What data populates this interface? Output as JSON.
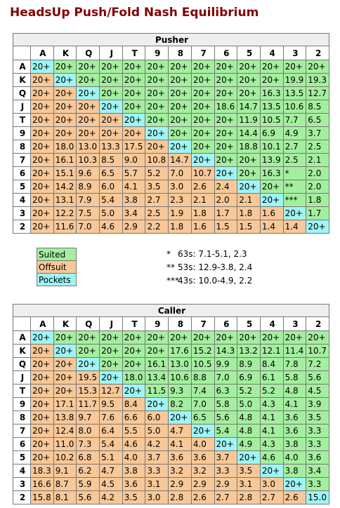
{
  "title": "HeadsUp Push/Fold Nash Equilibrium",
  "pusher": {
    "title": "Pusher",
    "columns": [
      "A",
      "K",
      "Q",
      "J",
      "T",
      "9",
      "8",
      "7",
      "6",
      "5",
      "4",
      "3",
      "2"
    ],
    "rows": [
      {
        "label": "A",
        "cells": [
          "20+",
          "20+",
          "20+",
          "20+",
          "20+",
          "20+",
          "20+",
          "20+",
          "20+",
          "20+",
          "20+",
          "20+",
          "20+"
        ]
      },
      {
        "label": "K",
        "cells": [
          "20+",
          "20+",
          "20+",
          "20+",
          "20+",
          "20+",
          "20+",
          "20+",
          "20+",
          "20+",
          "20+",
          "19.9",
          "19.3"
        ]
      },
      {
        "label": "Q",
        "cells": [
          "20+",
          "20+",
          "20+",
          "20+",
          "20+",
          "20+",
          "20+",
          "20+",
          "20+",
          "20+",
          "16.3",
          "13.5",
          "12.7"
        ]
      },
      {
        "label": "J",
        "cells": [
          "20+",
          "20+",
          "20+",
          "20+",
          "20+",
          "20+",
          "20+",
          "20+",
          "18.6",
          "14.7",
          "13.5",
          "10.6",
          "8.5"
        ]
      },
      {
        "label": "T",
        "cells": [
          "20+",
          "20+",
          "20+",
          "20+",
          "20+",
          "20+",
          "20+",
          "20+",
          "20+",
          "11.9",
          "10.5",
          "7.7",
          "6.5"
        ]
      },
      {
        "label": "9",
        "cells": [
          "20+",
          "20+",
          "20+",
          "20+",
          "20+",
          "20+",
          "20+",
          "20+",
          "20+",
          "14.4",
          "6.9",
          "4.9",
          "3.7"
        ]
      },
      {
        "label": "8",
        "cells": [
          "20+",
          "18.0",
          "13.0",
          "13.3",
          "17.5",
          "20+",
          "20+",
          "20+",
          "20+",
          "18.8",
          "10.1",
          "2.7",
          "2.5"
        ]
      },
      {
        "label": "7",
        "cells": [
          "20+",
          "16.1",
          "10.3",
          "8.5",
          "9.0",
          "10.8",
          "14.7",
          "20+",
          "20+",
          "20+",
          "13.9",
          "2.5",
          "2.1"
        ]
      },
      {
        "label": "6",
        "cells": [
          "20+",
          "15.1",
          "9.6",
          "6.5",
          "5.7",
          "5.2",
          "7.0",
          "10.7",
          "20+",
          "20+",
          "16.3",
          "*",
          "2.0"
        ]
      },
      {
        "label": "5",
        "cells": [
          "20+",
          "14.2",
          "8.9",
          "6.0",
          "4.1",
          "3.5",
          "3.0",
          "2.6",
          "2.4",
          "20+",
          "20+",
          "**",
          "2.0"
        ]
      },
      {
        "label": "4",
        "cells": [
          "20+",
          "13.1",
          "7.9",
          "5.4",
          "3.8",
          "2.7",
          "2.3",
          "2.1",
          "2.0",
          "2.1",
          "20+",
          "***",
          "1.8"
        ]
      },
      {
        "label": "3",
        "cells": [
          "20+",
          "12.2",
          "7.5",
          "5.0",
          "3.4",
          "2.5",
          "1.9",
          "1.8",
          "1.7",
          "1.8",
          "1.6",
          "20+",
          "1.7"
        ]
      },
      {
        "label": "2",
        "cells": [
          "20+",
          "11.6",
          "7.0",
          "4.6",
          "2.9",
          "2.2",
          "1.8",
          "1.6",
          "1.5",
          "1.5",
          "1.4",
          "1.4",
          "20+"
        ]
      }
    ]
  },
  "legend": [
    "Suited",
    "Offsuit",
    "Pockets"
  ],
  "notes": [
    {
      "mark": "*",
      "text": "63s: 7.1-5.1, 2.3"
    },
    {
      "mark": "**",
      "text": "53s: 12.9-3.8, 2.4"
    },
    {
      "mark": "***",
      "text": "43s: 10.0-4.9, 2.2"
    }
  ],
  "caller": {
    "title": "Caller",
    "columns": [
      "A",
      "K",
      "Q",
      "J",
      "T",
      "9",
      "8",
      "7",
      "6",
      "5",
      "4",
      "3",
      "2"
    ],
    "rows": [
      {
        "label": "A",
        "cells": [
          "20+",
          "20+",
          "20+",
          "20+",
          "20+",
          "20+",
          "20+",
          "20+",
          "20+",
          "20+",
          "20+",
          "20+",
          "20+"
        ]
      },
      {
        "label": "K",
        "cells": [
          "20+",
          "20+",
          "20+",
          "20+",
          "20+",
          "20+",
          "17.6",
          "15.2",
          "14.3",
          "13.2",
          "12.1",
          "11.4",
          "10.7"
        ]
      },
      {
        "label": "Q",
        "cells": [
          "20+",
          "20+",
          "20+",
          "20+",
          "20+",
          "16.1",
          "13.0",
          "10.5",
          "9.9",
          "8.9",
          "8.4",
          "7.8",
          "7.2"
        ]
      },
      {
        "label": "J",
        "cells": [
          "20+",
          "20+",
          "19.5",
          "20+",
          "18.0",
          "13.4",
          "10.6",
          "8.8",
          "7.0",
          "6.9",
          "6.1",
          "5.8",
          "5.6"
        ]
      },
      {
        "label": "T",
        "cells": [
          "20+",
          "20+",
          "15.3",
          "12.7",
          "20+",
          "11.5",
          "9.3",
          "7.4",
          "6.3",
          "5.2",
          "5.2",
          "4.8",
          "4.5"
        ]
      },
      {
        "label": "9",
        "cells": [
          "20+",
          "17.1",
          "11.7",
          "9.5",
          "8.4",
          "20+",
          "8.2",
          "7.0",
          "5.8",
          "5.0",
          "4.3",
          "4.1",
          "3.9"
        ]
      },
      {
        "label": "8",
        "cells": [
          "20+",
          "13.8",
          "9.7",
          "7.6",
          "6.6",
          "6.0",
          "20+",
          "6.5",
          "5.6",
          "4.8",
          "4.1",
          "3.6",
          "3.5"
        ]
      },
      {
        "label": "7",
        "cells": [
          "20+",
          "12.4",
          "8.0",
          "6.4",
          "5.5",
          "5.0",
          "4.7",
          "20+",
          "5.4",
          "4.8",
          "4.1",
          "3.6",
          "3.3"
        ]
      },
      {
        "label": "6",
        "cells": [
          "20+",
          "11.0",
          "7.3",
          "5.4",
          "4.6",
          "4.2",
          "4.1",
          "4.0",
          "20+",
          "4.9",
          "4.3",
          "3.8",
          "3.3"
        ]
      },
      {
        "label": "5",
        "cells": [
          "20+",
          "10.2",
          "6.8",
          "5.1",
          "4.0",
          "3.7",
          "3.6",
          "3.6",
          "3.7",
          "20+",
          "4.6",
          "4.0",
          "3.6"
        ]
      },
      {
        "label": "4",
        "cells": [
          "18.3",
          "9.1",
          "6.2",
          "4.7",
          "3.8",
          "3.3",
          "3.2",
          "3.2",
          "3.3",
          "3.5",
          "20+",
          "3.8",
          "3.4"
        ]
      },
      {
        "label": "3",
        "cells": [
          "16.6",
          "8.7",
          "5.9",
          "4.5",
          "3.6",
          "3.1",
          "2.9",
          "2.9",
          "2.9",
          "3.1",
          "3.0",
          "20+",
          "3.3"
        ]
      },
      {
        "label": "2",
        "cells": [
          "15.8",
          "8.1",
          "5.6",
          "4.2",
          "3.5",
          "3.0",
          "2.8",
          "2.6",
          "2.7",
          "2.8",
          "2.7",
          "2.6",
          "15.0"
        ]
      }
    ]
  }
}
